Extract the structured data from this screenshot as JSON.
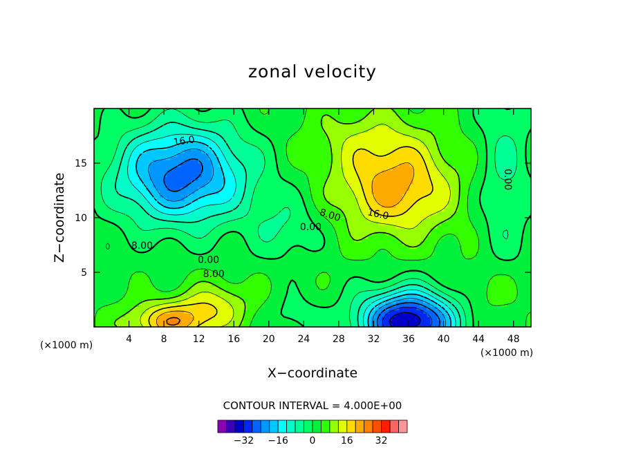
{
  "chart_data": {
    "type": "heatmap",
    "title": "zonal velocity",
    "xlabel": "X−coordinate",
    "ylabel": "Z−coordinate",
    "x_unit_label": "(×1000 m)",
    "x_unit_label_right": "(×1000 m)",
    "xlim": [
      0,
      50
    ],
    "ylim": [
      0,
      20
    ],
    "x_ticks": [
      4,
      8,
      12,
      16,
      20,
      24,
      28,
      32,
      36,
      40,
      44,
      48
    ],
    "x_tick_labels": [
      "4",
      "8",
      "12",
      "16",
      "20",
      "24",
      "28",
      "32",
      "36",
      "40",
      "44",
      "48"
    ],
    "y_ticks": [
      5,
      10,
      15
    ],
    "y_tick_labels": [
      "5",
      "10",
      "15"
    ],
    "contour_interval_text": "CONTOUR INTERVAL = 4.000E+00",
    "contour_interval": 4,
    "contour_labels": [
      {
        "text": "16.0",
        "x": 10.3,
        "y": 17.0,
        "angle": -8
      },
      {
        "text": "16.0",
        "x": 32.5,
        "y": 10.3,
        "angle": 12
      },
      {
        "text": "8.00",
        "x": 27.0,
        "y": 10.2,
        "angle": 18
      },
      {
        "text": "0.00",
        "x": 24.8,
        "y": 9.1,
        "angle": 0
      },
      {
        "text": "8.00",
        "x": 5.5,
        "y": 7.4,
        "angle": 0
      },
      {
        "text": "0.00",
        "x": 13.1,
        "y": 6.1,
        "angle": 0
      },
      {
        "text": "8.00",
        "x": 13.7,
        "y": 4.8,
        "angle": 0
      },
      {
        "text": "0.00",
        "x": 47.3,
        "y": 13.5,
        "angle": 90
      }
    ],
    "features": [
      {
        "kind": "min",
        "x": 10.0,
        "y": 14.0,
        "value": -26
      },
      {
        "kind": "max",
        "x": 35.0,
        "y": 12.5,
        "value": 22
      },
      {
        "kind": "max",
        "x": 8.5,
        "y": 0.6,
        "value": 22
      },
      {
        "kind": "min",
        "x": 36.0,
        "y": 0.9,
        "value": -36
      }
    ],
    "colorbar": {
      "levels": [
        -40,
        -36,
        -32,
        -28,
        -24,
        -20,
        -16,
        -12,
        -8,
        -4,
        0,
        4,
        8,
        12,
        16,
        20,
        24,
        28,
        32,
        36,
        40
      ],
      "colors": [
        "#8a00b4",
        "#3c00b4",
        "#0000c8",
        "#0028f0",
        "#0064ff",
        "#0096ff",
        "#00c8ff",
        "#00ffff",
        "#00ffc8",
        "#00ff96",
        "#00ff64",
        "#00f03c",
        "#32ff00",
        "#96ff00",
        "#e1ff00",
        "#ffdc00",
        "#ffaa00",
        "#ff8200",
        "#ff5000",
        "#ff1e00",
        "#ff6464",
        "#ff9696"
      ],
      "tick_values": [
        -32,
        -16,
        0,
        16,
        32
      ],
      "tick_labels": [
        "−32",
        "−16",
        "0",
        "16",
        "32"
      ]
    }
  }
}
